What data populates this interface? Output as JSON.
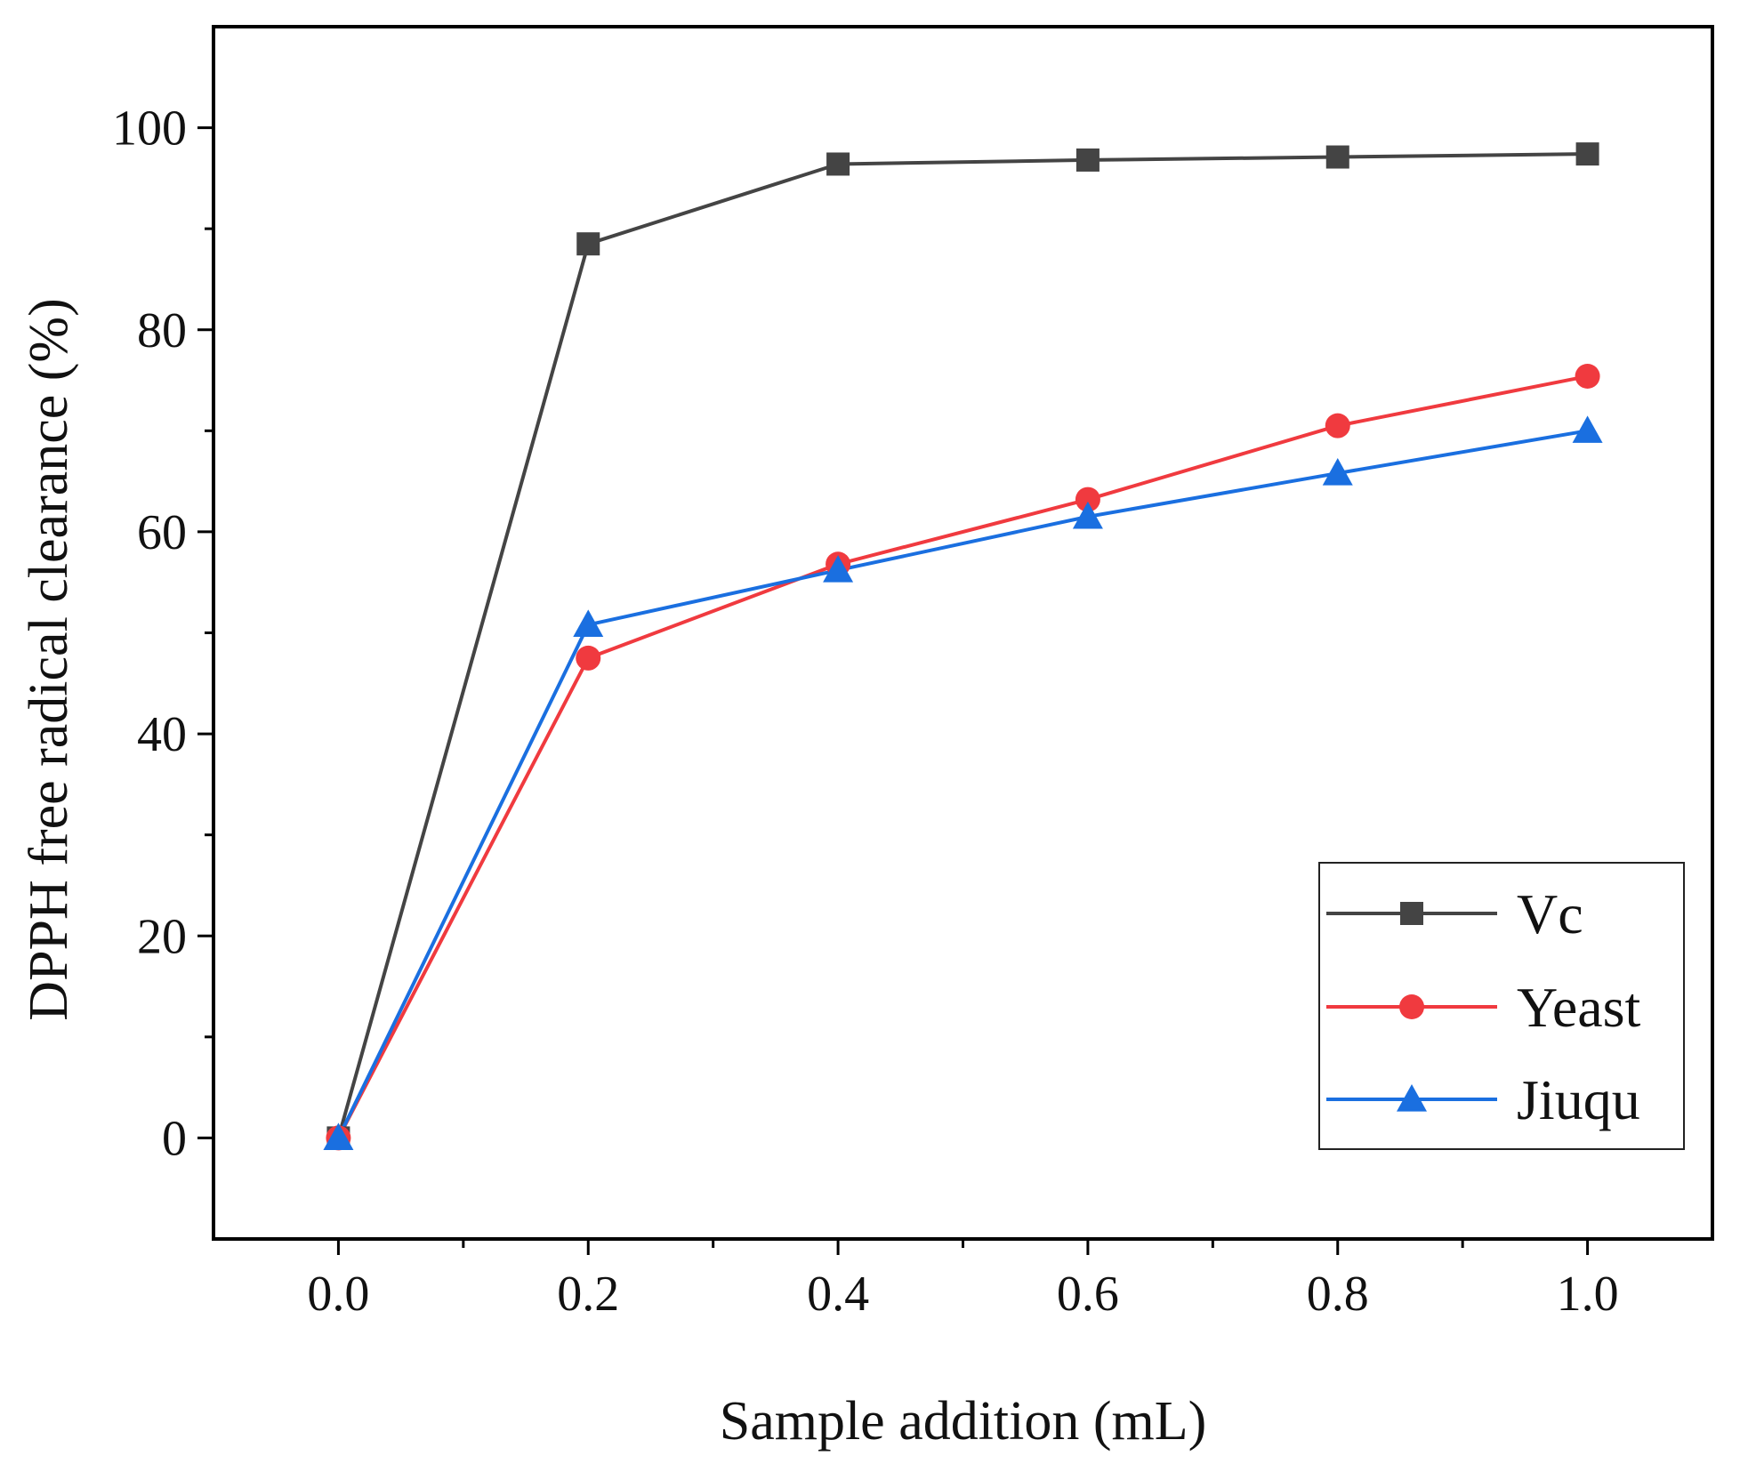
{
  "chart_data": {
    "type": "line",
    "title": "",
    "xlabel": "Sample addition (mL)",
    "ylabel": "DPPH free radical clearance (%)",
    "xlim": [
      -0.1,
      1.1
    ],
    "ylim": [
      -10,
      110
    ],
    "x_ticks": [
      0.0,
      0.2,
      0.4,
      0.6,
      0.8,
      1.0
    ],
    "x_tick_labels": [
      "0.0",
      "0.2",
      "0.4",
      "0.6",
      "0.8",
      "1.0"
    ],
    "x_minor_ticks": [
      0.1,
      0.3,
      0.5,
      0.7,
      0.9
    ],
    "y_ticks": [
      0,
      20,
      40,
      60,
      80,
      100
    ],
    "y_tick_labels": [
      "0",
      "20",
      "40",
      "60",
      "80",
      "100"
    ],
    "y_minor_ticks": [
      10,
      30,
      50,
      70,
      90
    ],
    "x": [
      0.0,
      0.2,
      0.4,
      0.6,
      0.8,
      1.0
    ],
    "grid": false,
    "legend_position": "bottom-right",
    "series": [
      {
        "name": "Vc",
        "marker": "square",
        "color": "#444444",
        "values": [
          0,
          88.5,
          96.4,
          96.8,
          97.1,
          97.4
        ]
      },
      {
        "name": "Yeast",
        "marker": "circle",
        "color": "#f03a3f",
        "values": [
          0,
          47.5,
          56.8,
          63.2,
          70.5,
          75.4
        ]
      },
      {
        "name": "Jiuqu",
        "marker": "triangle",
        "color": "#1a6fe0",
        "values": [
          0,
          50.8,
          56.2,
          61.5,
          65.8,
          70.0
        ]
      }
    ]
  }
}
